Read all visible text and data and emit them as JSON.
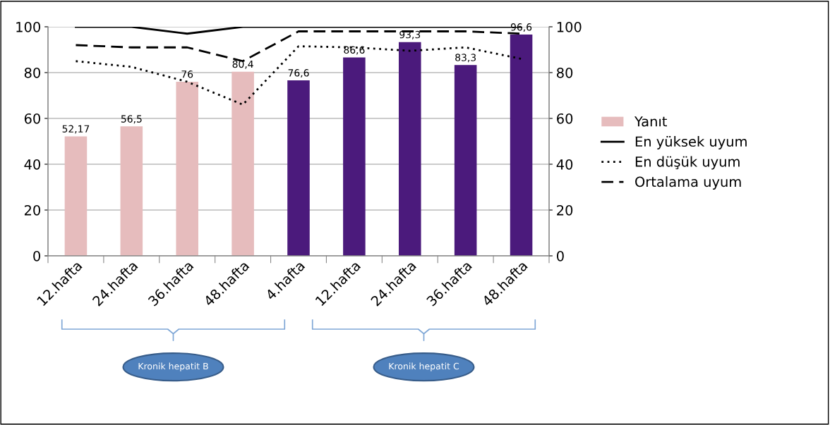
{
  "chart_data": {
    "type": "bar",
    "categories": [
      "12.hafta",
      "24.hafta",
      "36.hafta",
      "48.hafta",
      "4.hafta",
      "12.hafta",
      "24.hafta",
      "36.hafta",
      "48.hafta"
    ],
    "series": [
      {
        "name": "Yanıt",
        "colors": [
          "#e6bcbd",
          "#e6bcbd",
          "#e6bcbd",
          "#e6bcbd",
          "#4b1a7c",
          "#4b1a7c",
          "#4b1a7c",
          "#4b1a7c",
          "#4b1a7c"
        ],
        "values": [
          52.17,
          56.5,
          76,
          80.4,
          76.6,
          86.6,
          93.3,
          83.3,
          96.6
        ],
        "value_labels": [
          "52,17",
          "56,5",
          "76",
          "80,4",
          "76,6",
          "86,6",
          "93,3",
          "83,3",
          "96,6"
        ]
      },
      {
        "name": "En yüksek uyum",
        "type": "line",
        "color": "#000000",
        "line_style": "solid",
        "values": [
          100,
          100,
          97,
          100,
          100,
          100,
          100,
          100,
          100
        ]
      },
      {
        "name": "En düşük uyum",
        "type": "line",
        "color": "#000000",
        "line_style": "dotted",
        "values": [
          85,
          82.5,
          76,
          66,
          91.5,
          91,
          89.5,
          91,
          86
        ]
      },
      {
        "name": "Ortalama uyum",
        "type": "line",
        "color": "#000000",
        "line_style": "dashed",
        "values": [
          92,
          91,
          91,
          85,
          98,
          98,
          98,
          98,
          97
        ]
      }
    ],
    "ylim": [
      0,
      100
    ],
    "yticks": [
      0,
      20,
      40,
      60,
      80,
      100
    ],
    "y2lim": [
      0,
      100
    ],
    "y2ticks": [
      0,
      20,
      40,
      60,
      80,
      100
    ],
    "grid": "y",
    "legend": "right",
    "annotations": [
      "Kronik hepatit B",
      "Kronik hepatit C"
    ]
  }
}
